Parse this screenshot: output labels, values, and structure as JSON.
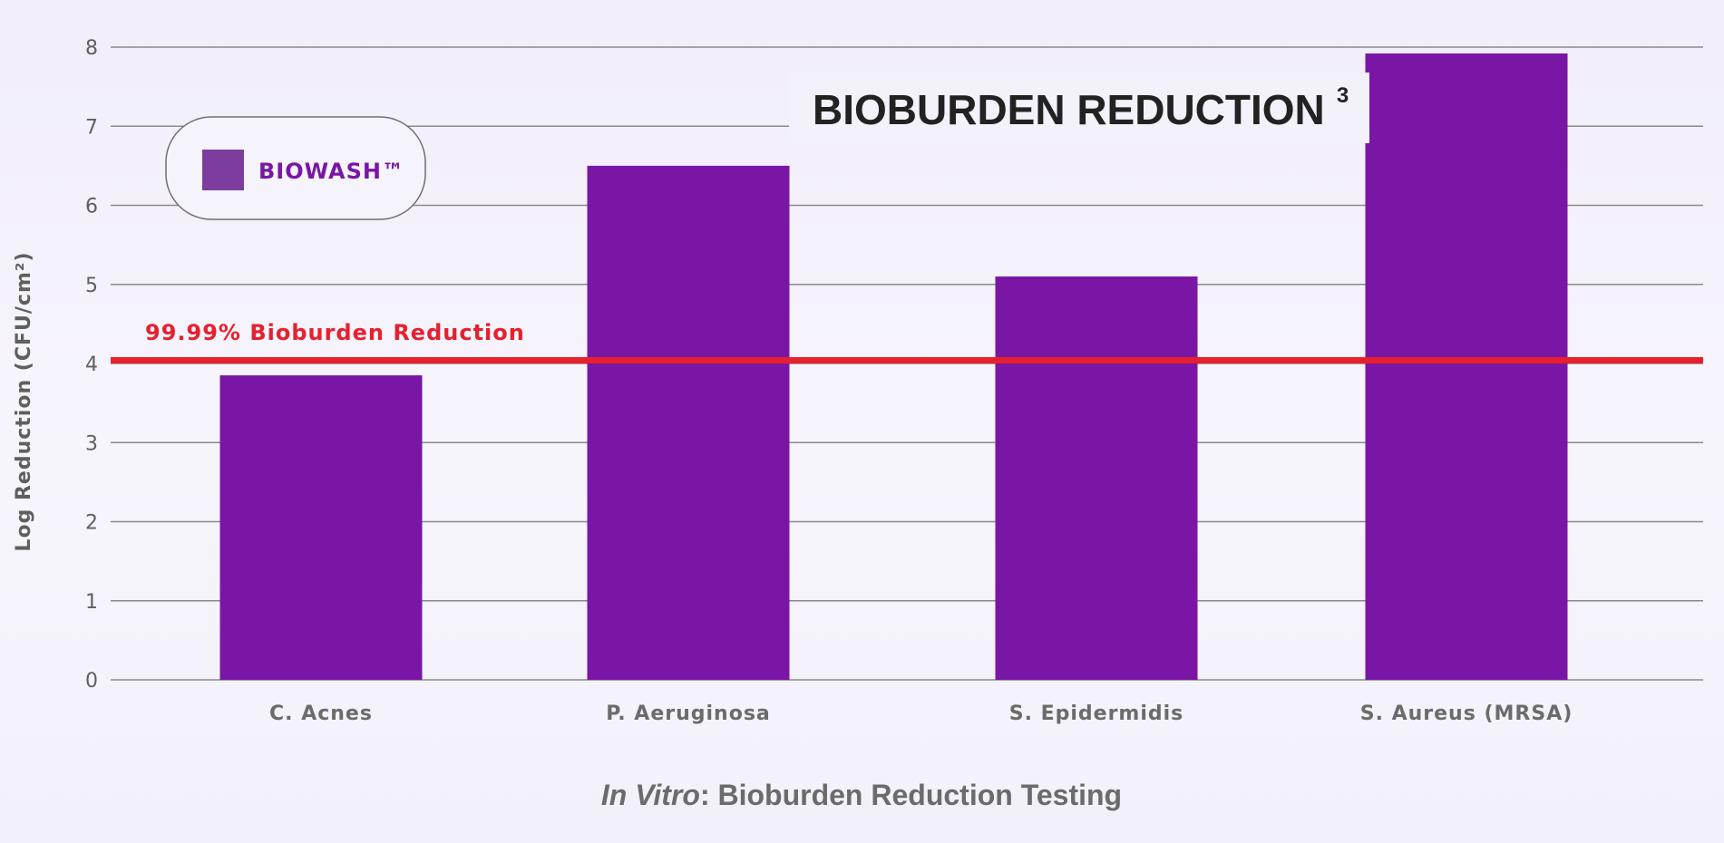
{
  "colors": {
    "bar": "#7a16a6",
    "legend_swatch": "#7d3d9e",
    "reference_line": "#e8202d",
    "grid": "#8a8a8a",
    "title": "#222222"
  },
  "chart_data": {
    "type": "bar",
    "title": "BIOBURDEN REDUCTION",
    "title_superscript": "3",
    "subtitle_em": "In Vitro",
    "subtitle_rest": ": Bioburden Reduction Testing",
    "ylabel": "Log Reduction (CFU/cm²)",
    "xlabel": "",
    "ylim": [
      0,
      8
    ],
    "yticks": [
      "0",
      "1",
      "2",
      "3",
      "4",
      "5",
      "6",
      "7",
      "8"
    ],
    "grid": true,
    "categories": [
      "C. Acnes",
      "P. Aeruginosa",
      "S. Epidermidis",
      "S. Aureus (MRSA)"
    ],
    "series": [
      {
        "name": "BIOWASH™",
        "values": [
          3.85,
          6.5,
          5.1,
          7.92
        ]
      }
    ],
    "legend": {
      "label": "BIOWASH™",
      "position": "top-left"
    },
    "reference_line": {
      "value": 4.04,
      "label": "99.99% Bioburden Reduction"
    }
  }
}
